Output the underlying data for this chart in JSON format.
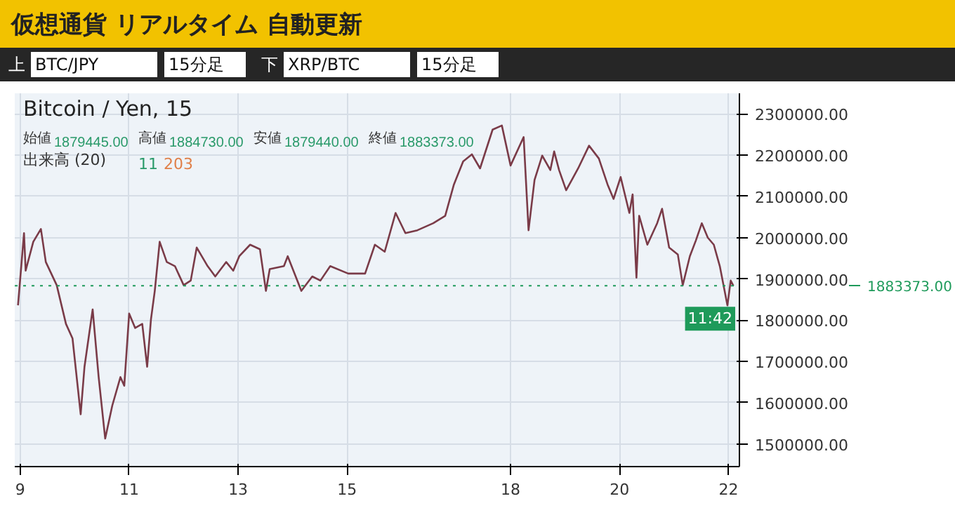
{
  "chart_data": {
    "type": "line",
    "title": "仮想通貨 リアルタイム 自動更新",
    "subtitle": "Bitcoin / Yen, 15",
    "annotations": [
      "上",
      "BTC/JPY",
      "15分足",
      "下",
      "XRP/BTC",
      "15分足",
      "始値",
      "1879445.00",
      "高値",
      "1884730.00",
      "安値",
      "1879440.00",
      "終値",
      "1883373.00",
      "出来高 (20)",
      "11",
      "203",
      "11:42"
    ],
    "x": [
      8.96,
      9.07,
      9.1,
      9.24,
      9.38,
      9.47,
      9.67,
      9.84,
      9.96,
      10.11,
      10.18,
      10.33,
      10.44,
      10.56,
      10.69,
      10.84,
      10.91,
      11.0,
      11.11,
      11.24,
      11.33,
      11.4,
      11.47,
      11.56,
      11.69,
      11.84,
      12.0,
      12.13,
      12.24,
      12.44,
      12.58,
      12.78,
      12.91,
      13.02,
      13.22,
      13.4,
      13.51,
      13.58,
      13.84,
      13.91,
      14.16,
      14.36,
      14.51,
      14.69,
      15.02,
      15.33,
      15.51,
      15.69,
      15.89,
      16.07,
      16.29,
      16.58,
      16.8,
      16.96,
      17.13,
      17.29,
      17.44,
      17.67,
      17.84,
      18.0,
      18.24,
      18.33,
      18.44,
      18.58,
      18.73,
      18.8,
      18.89,
      19.02,
      19.24,
      19.44,
      19.62,
      19.78,
      19.89,
      20.02,
      20.18,
      20.24,
      20.31,
      20.36,
      20.51,
      20.69,
      20.78,
      20.91,
      21.07,
      21.16,
      21.29,
      21.4,
      21.51,
      21.62,
      21.73,
      21.84,
      21.98,
      22.04,
      22.09
    ],
    "values": [
      1836000,
      2011000,
      1920000,
      1990000,
      2021000,
      1941000,
      1885000,
      1791000,
      1756000,
      1572000,
      1687000,
      1826000,
      1662000,
      1513000,
      1593000,
      1662000,
      1641000,
      1816000,
      1781000,
      1791000,
      1687000,
      1802000,
      1871000,
      1990000,
      1941000,
      1931000,
      1885000,
      1896000,
      1976000,
      1931000,
      1906000,
      1941000,
      1920000,
      1955000,
      1983000,
      1972000,
      1871000,
      1924000,
      1931000,
      1955000,
      1871000,
      1906000,
      1896000,
      1931000,
      1913000,
      1913000,
      1983000,
      1966000,
      2060000,
      2011000,
      2018000,
      2035000,
      2053000,
      2129000,
      2185000,
      2202000,
      2168000,
      2262000,
      2272000,
      2175000,
      2244000,
      2018000,
      2140000,
      2199000,
      2164000,
      2209000,
      2164000,
      2115000,
      2168000,
      2223000,
      2192000,
      2129000,
      2094000,
      2147000,
      2060000,
      2105000,
      1903000,
      2053000,
      1983000,
      2035000,
      2070000,
      1976000,
      1959000,
      1885000,
      1955000,
      1993000,
      2035000,
      2000000,
      1983000,
      1931000,
      1836000,
      1896000,
      1883373
    ],
    "color": "#7a3b48",
    "xlim": [
      8.9,
      22.2
    ],
    "xticks": [
      9,
      11,
      13,
      15,
      18,
      20,
      22
    ],
    "ylim": [
      1445000,
      2350000
    ],
    "yticks": [
      {
        "value": 1500000,
        "label": "1500000.00"
      },
      {
        "value": 1600000,
        "label": "1600000.00"
      },
      {
        "value": 1700000,
        "label": "1700000.00"
      },
      {
        "value": 1800000,
        "label": "1800000.00"
      },
      {
        "value": 1900000,
        "label": "1900000.00"
      },
      {
        "value": 2000000,
        "label": "2000000.00"
      },
      {
        "value": 2100000,
        "label": "2100000.00"
      },
      {
        "value": 2200000,
        "label": "2200000.00"
      },
      {
        "value": 2300000,
        "label": "2300000.00"
      }
    ],
    "ref_lines": [
      {
        "axis": "y",
        "value": 1883373,
        "label": "1883373.00",
        "color": "#1e9a5a",
        "line_style": "dotted"
      }
    ],
    "grid": true
  }
}
